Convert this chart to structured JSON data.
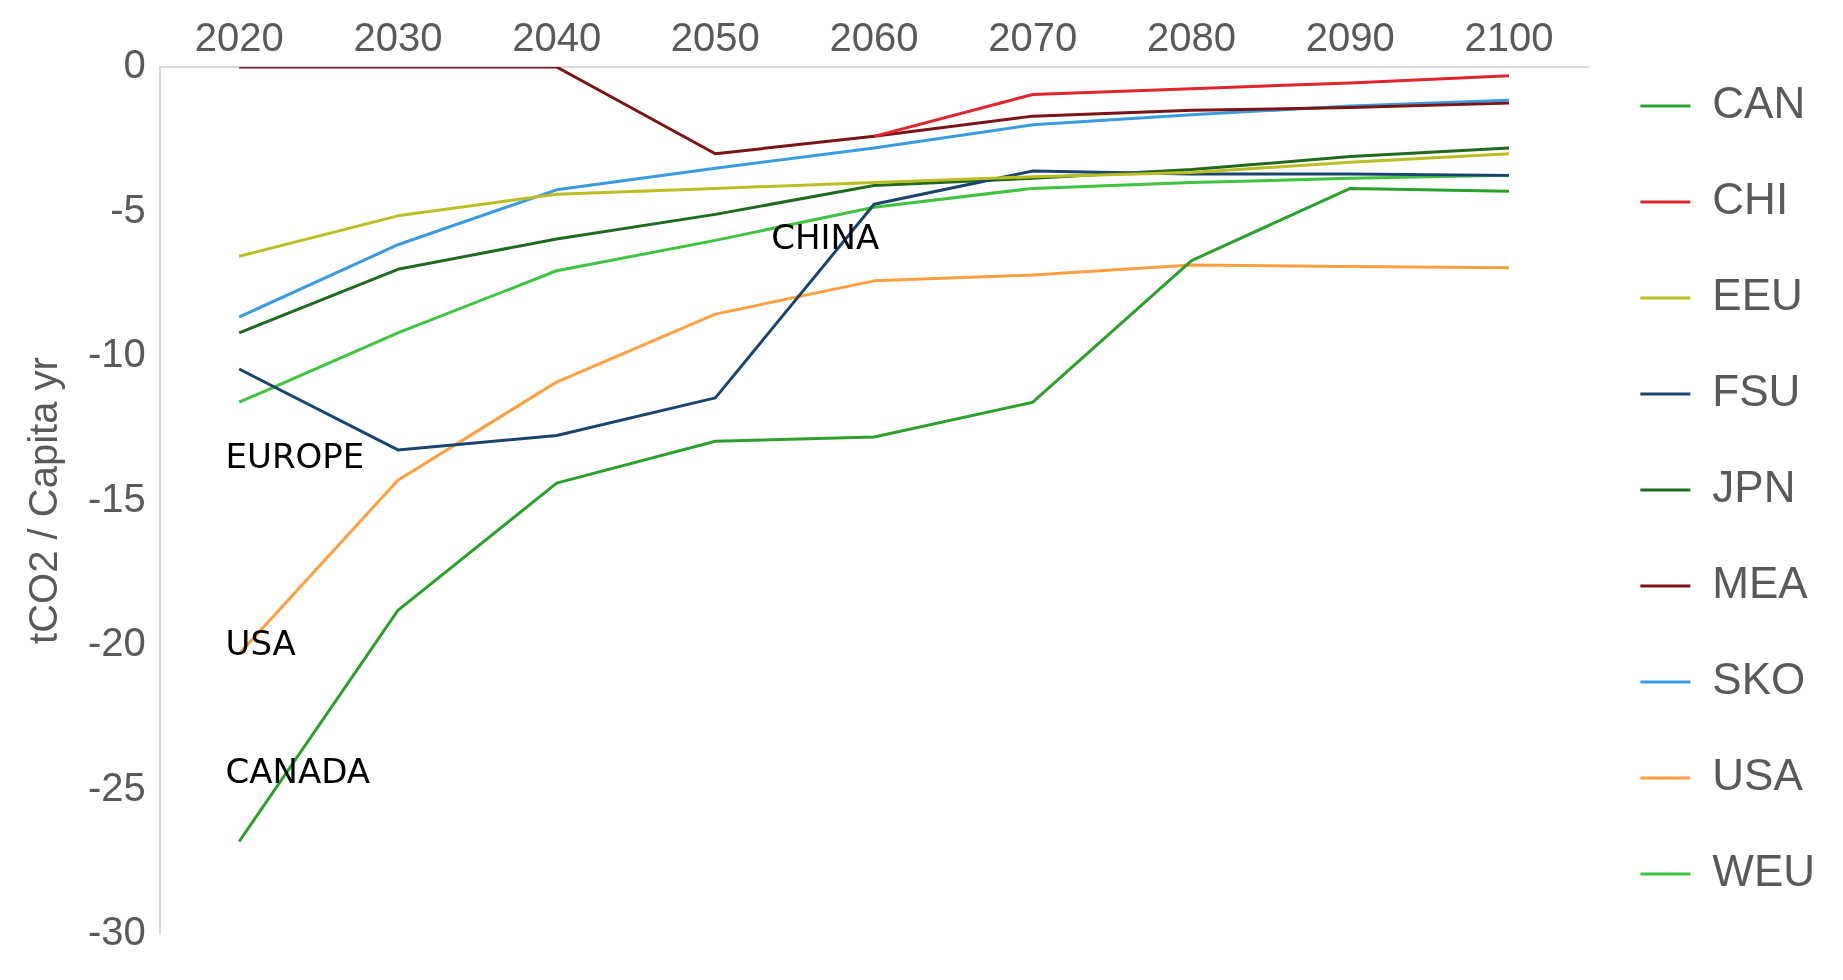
{
  "chart_data": {
    "type": "line",
    "ylabel": "tCO2 / Capita yr",
    "x": [
      2020,
      2030,
      2040,
      2050,
      2060,
      2070,
      2080,
      2090,
      2100
    ],
    "xlim": [
      2015,
      2105
    ],
    "xticks": [
      2020,
      2030,
      2040,
      2050,
      2060,
      2070,
      2080,
      2090,
      2100
    ],
    "ylim": [
      -30,
      0
    ],
    "yticks": [
      -30,
      -25,
      -20,
      -15,
      -10,
      -5,
      0
    ],
    "grid": false,
    "legend": "right",
    "marker": "none",
    "line_style": "solid",
    "series": [
      {
        "name": "CAN",
        "color": "#2ca02c",
        "values": [
          -26.8,
          -18.8,
          -14.4,
          -12.95,
          -12.8,
          -11.6,
          -6.7,
          -4.2,
          -4.3
        ]
      },
      {
        "name": "CHI",
        "color": "#e0262b",
        "values": [
          null,
          null,
          null,
          null,
          -2.4,
          -0.95,
          -0.75,
          -0.55,
          -0.3
        ]
      },
      {
        "name": "EEU",
        "color": "#bcbd22",
        "values": [
          -6.55,
          -5.15,
          -4.4,
          -4.2,
          -4.0,
          -3.8,
          -3.65,
          -3.3,
          -3.0
        ]
      },
      {
        "name": "FSU",
        "color": "#17456e",
        "values": [
          -10.45,
          -13.25,
          -12.75,
          -11.45,
          -4.75,
          -3.6,
          -3.7,
          -3.7,
          -3.75
        ]
      },
      {
        "name": "JPN",
        "color": "#1e6b1e",
        "values": [
          -9.2,
          -7.0,
          -5.95,
          -5.1,
          -4.1,
          -3.85,
          -3.55,
          -3.1,
          -2.8
        ]
      },
      {
        "name": "MEA",
        "color": "#7b1416",
        "values": [
          0,
          0,
          0,
          -3.0,
          -2.4,
          -1.7,
          -1.5,
          -1.4,
          -1.25
        ]
      },
      {
        "name": "SKO",
        "color": "#3a9be0",
        "values": [
          -8.65,
          -6.15,
          -4.25,
          -3.5,
          -2.8,
          -2.0,
          -1.65,
          -1.35,
          -1.15
        ]
      },
      {
        "name": "USA",
        "color": "#ffa040",
        "values": [
          -20.3,
          -14.3,
          -10.9,
          -8.55,
          -7.4,
          -7.2,
          -6.85,
          -6.9,
          -6.95
        ]
      },
      {
        "name": "WEU",
        "color": "#3ec43e",
        "values": [
          -11.6,
          -9.2,
          -7.05,
          -6.0,
          -4.85,
          -4.2,
          -4.0,
          -3.85,
          -3.75
        ]
      }
    ],
    "annotations": [
      "CHINA",
      "EUROPE",
      "USA",
      "CANADA"
    ]
  }
}
